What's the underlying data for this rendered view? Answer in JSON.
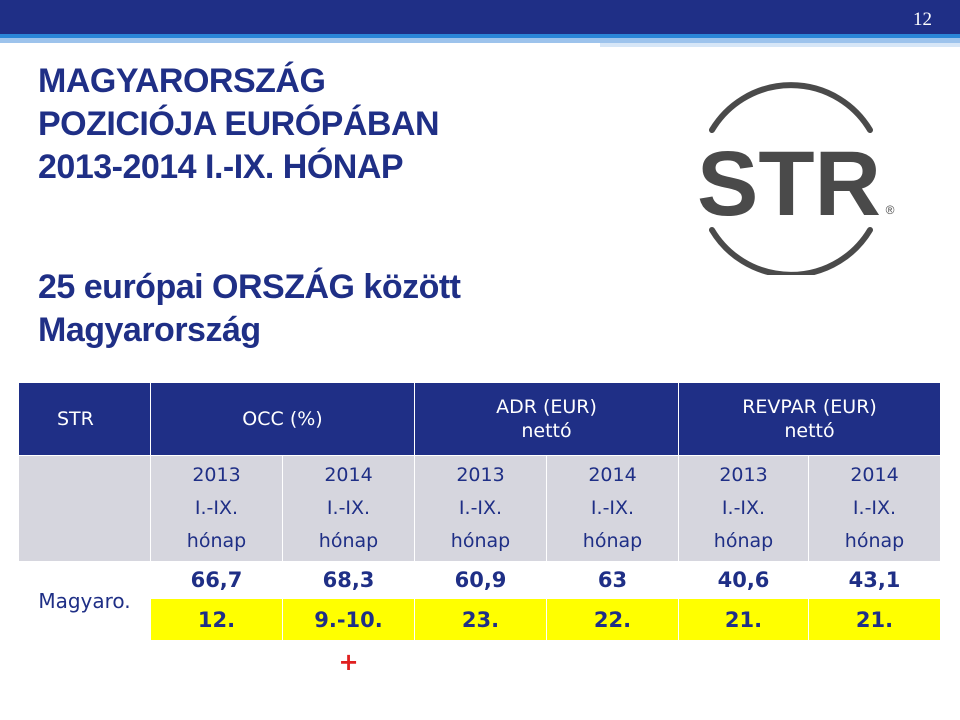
{
  "slide_number": "12",
  "title_lines": [
    "MAGYARORSZÁG",
    "POZICIÓJA EURÓPÁBAN",
    "2013-2014 I.-IX. HÓNAP"
  ],
  "subtitle_lines": [
    "25 európai ORSZÁG között",
    "Magyarország"
  ],
  "logo": {
    "text": "STR",
    "mark": "®"
  },
  "table": {
    "header": {
      "str": "STR",
      "occ": "OCC (%)",
      "adr_line1": "ADR (EUR)",
      "adr_line2": "nettó",
      "revpar_line1": "REVPAR  (EUR)",
      "revpar_line2": "nettó"
    },
    "periods": [
      {
        "year": "2013",
        "months": "I.-IX.",
        "unit": "hónap"
      },
      {
        "year": "2014",
        "months": "I.-IX.",
        "unit": "hónap"
      },
      {
        "year": "2013",
        "months": "I.-IX.",
        "unit": "hónap"
      },
      {
        "year": "2014",
        "months": "I.-IX.",
        "unit": "hónap"
      },
      {
        "year": "2013",
        "months": "I.-IX.",
        "unit": "hónap"
      },
      {
        "year": "2014",
        "months": "I.-IX.",
        "unit": "hónap"
      }
    ],
    "country": "Magyaro.",
    "values": [
      "66,7",
      "68,3",
      "60,9",
      "63",
      "40,6",
      "43,1"
    ],
    "ranks": [
      "12.",
      "9.-10.",
      "23.",
      "22.",
      "21.",
      "21."
    ],
    "change_marker": "+"
  },
  "colors": {
    "navy": "#1f2f86",
    "accent_blue": "#2a86d8",
    "highlight": "#ffff00",
    "plus": "#e02020"
  }
}
